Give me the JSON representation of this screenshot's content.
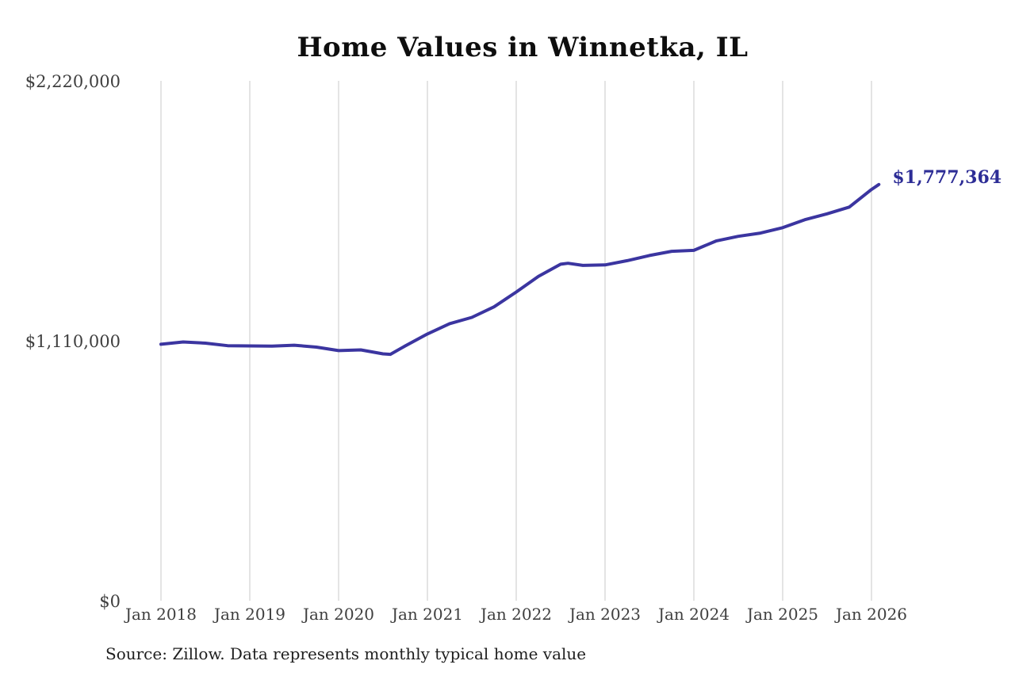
{
  "chart": {
    "title": "Home Values in Winnetka, IL",
    "end_label": "$1,777,364",
    "source_note": "Source: Zillow. Data represents monthly typical home value",
    "colors": {
      "line": "#3b35a0",
      "end_label_text": "#2d2d96",
      "gridline": "#c9c9c9",
      "axis_text": "#3f3f3f",
      "title_text": "#0e0e0e",
      "background": "#ffffff"
    }
  },
  "chart_data": {
    "type": "line",
    "title": "Home Values in Winnetka, IL",
    "xlabel": "",
    "ylabel": "",
    "ylim": [
      0,
      2220000
    ],
    "grid": "vertical-only",
    "legend": "none",
    "y_ticks": [
      {
        "value": 0,
        "label": "$0"
      },
      {
        "value": 1110000,
        "label": "$1,110,000"
      },
      {
        "value": 2220000,
        "label": "$2,220,000"
      }
    ],
    "x_tick_labels": [
      "Jan 2018",
      "Jan 2019",
      "Jan 2020",
      "Jan 2021",
      "Jan 2022",
      "Jan 2023",
      "Jan 2024",
      "Jan 2025",
      "Jan 2026"
    ],
    "annotation": {
      "text": "$1,777,364",
      "position": "line-end"
    },
    "series": [
      {
        "name": "Monthly typical home value",
        "points": [
          {
            "date": "2018-01",
            "value": 1095000
          },
          {
            "date": "2018-04",
            "value": 1105000
          },
          {
            "date": "2018-07",
            "value": 1100000
          },
          {
            "date": "2018-10",
            "value": 1089000
          },
          {
            "date": "2019-01",
            "value": 1088000
          },
          {
            "date": "2019-04",
            "value": 1087000
          },
          {
            "date": "2019-07",
            "value": 1091000
          },
          {
            "date": "2019-10",
            "value": 1083000
          },
          {
            "date": "2020-01",
            "value": 1068000
          },
          {
            "date": "2020-04",
            "value": 1071000
          },
          {
            "date": "2020-07",
            "value": 1054000
          },
          {
            "date": "2020-08",
            "value": 1052000
          },
          {
            "date": "2020-10",
            "value": 1088000
          },
          {
            "date": "2021-01",
            "value": 1139000
          },
          {
            "date": "2021-04",
            "value": 1183000
          },
          {
            "date": "2021-07",
            "value": 1210000
          },
          {
            "date": "2021-10",
            "value": 1255000
          },
          {
            "date": "2022-01",
            "value": 1318000
          },
          {
            "date": "2022-04",
            "value": 1385000
          },
          {
            "date": "2022-07",
            "value": 1437000
          },
          {
            "date": "2022-08",
            "value": 1441000
          },
          {
            "date": "2022-10",
            "value": 1432000
          },
          {
            "date": "2023-01",
            "value": 1434000
          },
          {
            "date": "2023-04",
            "value": 1452000
          },
          {
            "date": "2023-07",
            "value": 1474000
          },
          {
            "date": "2023-10",
            "value": 1492000
          },
          {
            "date": "2024-01",
            "value": 1496000
          },
          {
            "date": "2024-04",
            "value": 1536000
          },
          {
            "date": "2024-07",
            "value": 1556000
          },
          {
            "date": "2024-10",
            "value": 1570000
          },
          {
            "date": "2025-01",
            "value": 1593000
          },
          {
            "date": "2025-04",
            "value": 1627000
          },
          {
            "date": "2025-07",
            "value": 1652000
          },
          {
            "date": "2025-10",
            "value": 1681000
          },
          {
            "date": "2026-01",
            "value": 1756000
          },
          {
            "date": "2026-02",
            "value": 1777364
          }
        ]
      }
    ]
  }
}
